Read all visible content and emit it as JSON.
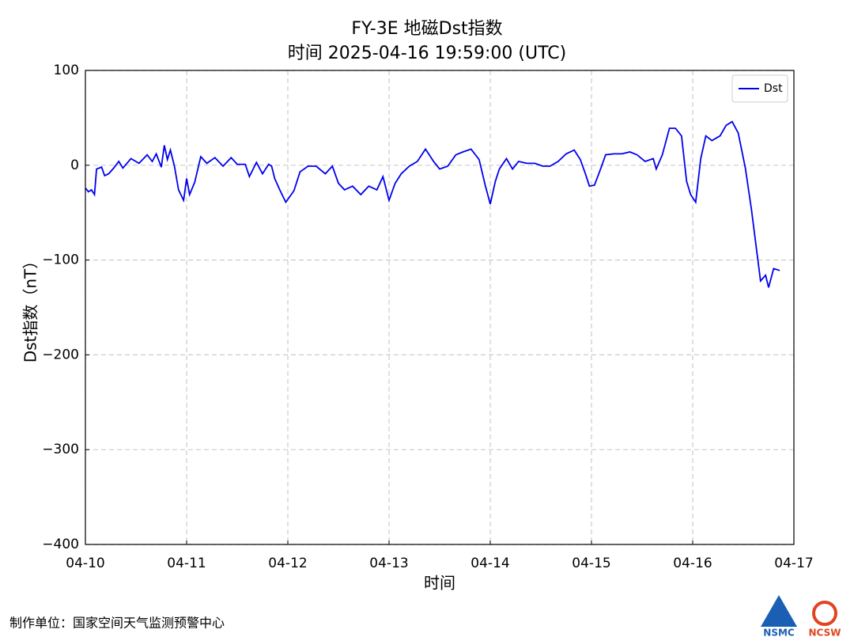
{
  "chart_data": {
    "type": "line",
    "title": "FY-3E 地磁Dst指数",
    "subtitle": "时间 2025-04-16 19:59:00 (UTC)",
    "x_label": "时间",
    "y_label": "Dst指数（nT）",
    "xlim": [
      0,
      7
    ],
    "xticks": [
      {
        "value": 0,
        "label": "04-10"
      },
      {
        "value": 1,
        "label": "04-11"
      },
      {
        "value": 2,
        "label": "04-12"
      },
      {
        "value": 3,
        "label": "04-13"
      },
      {
        "value": 4,
        "label": "04-14"
      },
      {
        "value": 5,
        "label": "04-15"
      },
      {
        "value": 6,
        "label": "04-16"
      },
      {
        "value": 7,
        "label": "04-17"
      }
    ],
    "ylim": [
      -400,
      100
    ],
    "yticks": [
      {
        "value": -400,
        "label": "−400"
      },
      {
        "value": -300,
        "label": "−300"
      },
      {
        "value": -200,
        "label": "−200"
      },
      {
        "value": -100,
        "label": "−100"
      },
      0,
      100
    ],
    "grid": true,
    "legend": "upper right",
    "x": [
      0,
      0.03,
      0.06,
      0.09,
      0.11,
      0.16,
      0.19,
      0.23,
      0.28,
      0.33,
      0.37,
      0.45,
      0.53,
      0.61,
      0.66,
      0.7,
      0.75,
      0.78,
      0.81,
      0.84,
      0.88,
      0.92,
      0.97,
      1.0,
      1.03,
      1.08,
      1.14,
      1.2,
      1.28,
      1.36,
      1.44,
      1.5,
      1.58,
      1.62,
      1.69,
      1.75,
      1.81,
      1.84,
      1.87,
      1.92,
      1.98,
      2.06,
      2.12,
      2.2,
      2.28,
      2.37,
      2.44,
      2.5,
      2.56,
      2.64,
      2.72,
      2.8,
      2.88,
      2.94,
      3.0,
      3.06,
      3.12,
      3.2,
      3.28,
      3.36,
      3.44,
      3.5,
      3.58,
      3.66,
      3.73,
      3.81,
      3.89,
      3.95,
      4.0,
      4.05,
      4.09,
      4.16,
      4.22,
      4.28,
      4.36,
      4.44,
      4.52,
      4.59,
      4.67,
      4.75,
      4.83,
      4.89,
      4.94,
      4.98,
      5.03,
      5.09,
      5.14,
      5.22,
      5.3,
      5.38,
      5.45,
      5.53,
      5.61,
      5.64,
      5.7,
      5.77,
      5.83,
      5.89,
      5.94,
      5.98,
      6.03,
      6.08,
      6.13,
      6.19,
      6.27,
      6.33,
      6.39,
      6.45,
      6.52,
      6.58,
      6.67,
      6.72,
      6.75,
      6.8,
      6.86
    ],
    "series": [
      {
        "name": "Dst",
        "color": "#0000ee",
        "values": [
          -24,
          -28,
          -26,
          -31,
          -4,
          -2,
          -11,
          -9,
          -3,
          4,
          -3,
          7,
          2,
          11,
          4,
          12,
          -2,
          21,
          6,
          16,
          -1,
          -26,
          -37,
          -14,
          -31,
          -18,
          9,
          2,
          8,
          -1,
          8,
          1,
          1,
          -12,
          3,
          -9,
          1,
          -1,
          -14,
          -26,
          -39,
          -27,
          -7,
          -1,
          -1,
          -9,
          -1,
          -19,
          -26,
          -22,
          -31,
          -22,
          -26,
          -12,
          -37,
          -19,
          -9,
          -1,
          4,
          17,
          4,
          -4,
          -1,
          11,
          14,
          17,
          6,
          -21,
          -41,
          -17,
          -4,
          7,
          -4,
          4,
          2,
          2,
          -1,
          -1,
          4,
          12,
          16,
          6,
          -9,
          -22,
          -21,
          -4,
          11,
          12,
          12,
          14,
          11,
          4,
          7,
          -4,
          11,
          39,
          39,
          31,
          -17,
          -31,
          -39,
          7,
          31,
          26,
          31,
          42,
          46,
          34,
          -3,
          -46,
          -122,
          -116,
          -129,
          -109,
          -111
        ]
      }
    ]
  },
  "footer": {
    "producer": "制作单位：国家空间天气监测预警中心",
    "logos": [
      "NSMC",
      "NCSW"
    ]
  }
}
